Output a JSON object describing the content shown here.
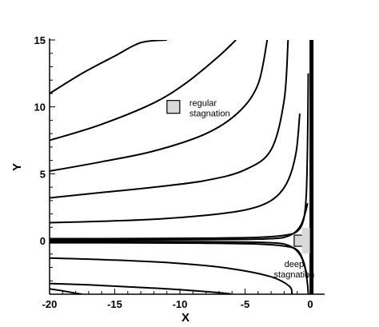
{
  "chart_data": {
    "type": "line",
    "xlabel": "X",
    "ylabel": "Y",
    "xlim": [
      -20,
      0.8
    ],
    "ylim": [
      -4,
      15
    ],
    "xticks": [
      -20,
      -15,
      -10,
      -5,
      0
    ],
    "yticks": [
      0,
      5,
      10,
      15
    ],
    "grid": false,
    "legend": "none",
    "line_color": "#000000",
    "wall_x": 0.1,
    "annotations": [
      {
        "text_lines": [
          "regular",
          "stagnation"
        ],
        "marker_x": -10.5,
        "marker_y": 10
      },
      {
        "text_lines": [
          "deep",
          "stagnation"
        ],
        "marker_x": -0.8,
        "marker_y": 0
      }
    ],
    "series": [
      {
        "x": [
          -20,
          -17.5,
          -15,
          -13,
          -11
        ],
        "y": [
          11,
          12.5,
          13.8,
          14.8,
          15
        ]
      },
      {
        "x": [
          -20,
          -16,
          -12,
          -9.5,
          -7,
          -5.7
        ],
        "y": [
          7.5,
          8.7,
          10.3,
          11.8,
          13.8,
          15
        ]
      },
      {
        "x": [
          -20,
          -16,
          -12,
          -8,
          -5.5,
          -4,
          -3.3
        ],
        "y": [
          5.2,
          5.9,
          6.7,
          8.0,
          9.6,
          11.7,
          15
        ]
      },
      {
        "x": [
          -20,
          -16,
          -12,
          -8,
          -5,
          -3,
          -2,
          -1.7
        ],
        "y": [
          3.2,
          3.6,
          4.0,
          4.5,
          5.3,
          6.8,
          10.5,
          15
        ]
      },
      {
        "x": [
          -20,
          -16,
          -12,
          -8,
          -5,
          -3,
          -1.8,
          -1.1,
          -0.8
        ],
        "y": [
          1.35,
          1.45,
          1.6,
          1.9,
          2.3,
          3.0,
          4.3,
          6.5,
          9.5
        ]
      },
      {
        "x": [
          -20,
          -14,
          -8,
          -4,
          -2,
          -1,
          -0.5,
          -0.3,
          -0.2,
          -0.15
        ],
        "y": [
          0.15,
          0.16,
          0.19,
          0.25,
          0.4,
          0.7,
          1.6,
          3.5,
          7.5,
          12.5
        ]
      },
      {
        "x": [
          -20,
          -10,
          -5,
          -3,
          -2,
          -1.2,
          -0.7,
          -0.4,
          -0.2
        ],
        "y": [
          0.05,
          0.07,
          0.1,
          0.15,
          0.25,
          0.6,
          1.2,
          2.0,
          2.8
        ]
      },
      {
        "x": [
          -20,
          -10,
          -5,
          -3,
          -2,
          -1.2,
          -0.7,
          -0.4,
          -0.2
        ],
        "y": [
          -0.05,
          -0.07,
          -0.1,
          -0.15,
          -0.25,
          -0.6,
          -1.2,
          -2.0,
          -2.8
        ]
      },
      {
        "x": [
          -20,
          -14,
          -8,
          -4,
          -2,
          -1,
          -0.5,
          -0.3,
          -0.2,
          -0.15
        ],
        "y": [
          -0.15,
          -0.16,
          -0.19,
          -0.25,
          -0.4,
          -0.7,
          -1.6,
          -2.6,
          -3.3,
          -4
        ]
      },
      {
        "x": [
          -20,
          -15,
          -10,
          -6,
          -3,
          -1.6,
          -1.4
        ],
        "y": [
          -1.3,
          -1.45,
          -1.7,
          -2.1,
          -2.7,
          -3.4,
          -4
        ]
      },
      {
        "x": [
          -20,
          -17,
          -14,
          -11,
          -8,
          -6.3,
          -6.1
        ],
        "y": [
          -3.2,
          -3.3,
          -3.45,
          -3.6,
          -3.8,
          -3.95,
          -4
        ]
      },
      {
        "x": [
          -20,
          -19,
          -18,
          -17.5
        ],
        "y": [
          -3.6,
          -3.75,
          -3.92,
          -4
        ]
      }
    ]
  }
}
